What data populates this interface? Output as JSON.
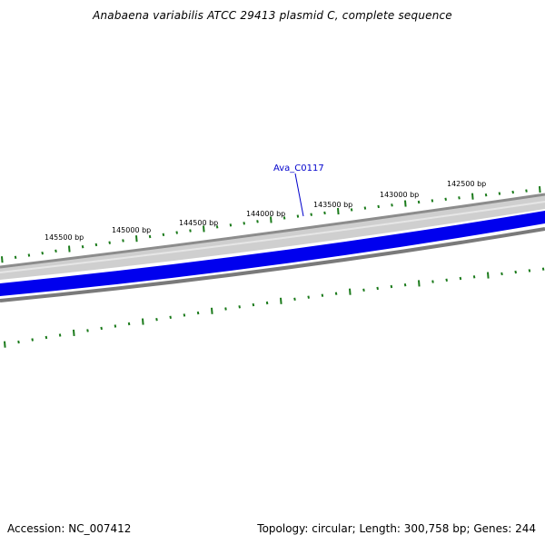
{
  "title": "Anabaena variabilis ATCC 29413 plasmid C, complete sequence",
  "footer": {
    "accession": "Accession: NC_007412",
    "summary": "Topology: circular; Length: 300,758 bp; Genes: 244"
  },
  "colors": {
    "outer_ring": "#8c8c8c",
    "outer_ring_fill": "#c8c8c8",
    "gene_track": "#0000ee",
    "inner_ring": "#7a7a7a",
    "ticks": "#1a7a1a",
    "gene_label": "#0000cc"
  },
  "gene_label": "Ava_C0117",
  "scale": {
    "unit": "bp",
    "labels": [
      "145500 bp",
      "145000 bp",
      "144500 bp",
      "144000 bp",
      "143500 bp",
      "143000 bp",
      "142500 bp"
    ]
  }
}
